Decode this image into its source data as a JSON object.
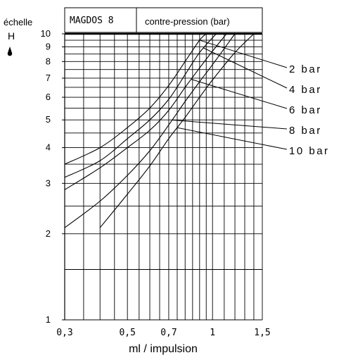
{
  "chart_data": {
    "type": "line",
    "title": "",
    "header": {
      "model": "MAGDOS 8",
      "subtitle": "contre-pression (bar)"
    },
    "ylabel": "échelle",
    "ylabel_letter": "H",
    "xlabel": "ml / impulsion",
    "x_scale": "log",
    "y_scale": "log",
    "xlim": [
      0.3,
      1.5
    ],
    "ylim": [
      1,
      10
    ],
    "x_ticks": [
      {
        "value": 0.3,
        "label": "0,3"
      },
      {
        "value": 0.5,
        "label": "0,5"
      },
      {
        "value": 0.7,
        "label": "0,7"
      },
      {
        "value": 1.0,
        "label": "1"
      },
      {
        "value": 1.5,
        "label": "1,5"
      }
    ],
    "y_ticks": [
      {
        "value": 1,
        "label": "1"
      },
      {
        "value": 2,
        "label": "2"
      },
      {
        "value": 3,
        "label": "3"
      },
      {
        "value": 4,
        "label": "4"
      },
      {
        "value": 5,
        "label": "5"
      },
      {
        "value": 6,
        "label": "6"
      },
      {
        "value": 7,
        "label": "7"
      },
      {
        "value": 8,
        "label": "8"
      },
      {
        "value": 9,
        "label": "9"
      },
      {
        "value": 10,
        "label": "10"
      }
    ],
    "x_grid": [
      0.3,
      0.35,
      0.4,
      0.45,
      0.5,
      0.55,
      0.6,
      0.65,
      0.7,
      0.75,
      0.8,
      0.85,
      0.9,
      0.95,
      1.0,
      1.1,
      1.2,
      1.3,
      1.4,
      1.5
    ],
    "y_grid": [
      1,
      1.5,
      2,
      2.5,
      3,
      3.5,
      4,
      4.5,
      5,
      5.5,
      6,
      6.5,
      7,
      7.5,
      8,
      8.5,
      9,
      9.5,
      10
    ],
    "grid": true,
    "legend_position": "right",
    "series": [
      {
        "name": "2 bar",
        "points": [
          [
            0.3,
            3.5
          ],
          [
            0.4,
            4.0
          ],
          [
            0.5,
            4.7
          ],
          [
            0.6,
            5.5
          ],
          [
            0.7,
            6.6
          ],
          [
            0.8,
            8.0
          ],
          [
            0.9,
            9.5
          ],
          [
            0.95,
            10
          ]
        ],
        "label_anchor": 0.9
      },
      {
        "name": "4 bar",
        "points": [
          [
            0.3,
            3.15
          ],
          [
            0.4,
            3.6
          ],
          [
            0.5,
            4.3
          ],
          [
            0.6,
            5.0
          ],
          [
            0.7,
            5.9
          ],
          [
            0.8,
            7.2
          ],
          [
            0.9,
            8.6
          ],
          [
            1.03,
            10
          ]
        ],
        "label_anchor": 0.93
      },
      {
        "name": "6 bar",
        "points": [
          [
            0.3,
            2.85
          ],
          [
            0.4,
            3.4
          ],
          [
            0.5,
            4.0
          ],
          [
            0.6,
            4.6
          ],
          [
            0.7,
            5.4
          ],
          [
            0.8,
            6.5
          ],
          [
            0.9,
            7.6
          ],
          [
            1.0,
            8.7
          ],
          [
            1.12,
            10
          ]
        ],
        "label_anchor": 0.84
      },
      {
        "name": "8 bar",
        "points": [
          [
            0.3,
            2.1
          ],
          [
            0.4,
            2.6
          ],
          [
            0.5,
            3.2
          ],
          [
            0.6,
            3.9
          ],
          [
            0.7,
            4.8
          ],
          [
            0.8,
            5.8
          ],
          [
            0.9,
            6.8
          ],
          [
            1.0,
            7.8
          ],
          [
            1.2,
            10
          ]
        ],
        "label_anchor": 0.72
      },
      {
        "name": "10 bar",
        "points": [
          [
            0.4,
            2.1
          ],
          [
            0.5,
            2.75
          ],
          [
            0.6,
            3.45
          ],
          [
            0.7,
            4.3
          ],
          [
            0.8,
            5.1
          ],
          [
            0.9,
            6.0
          ],
          [
            1.0,
            6.9
          ],
          [
            1.2,
            8.6
          ],
          [
            1.4,
            10
          ]
        ],
        "label_anchor": 0.75
      }
    ]
  }
}
